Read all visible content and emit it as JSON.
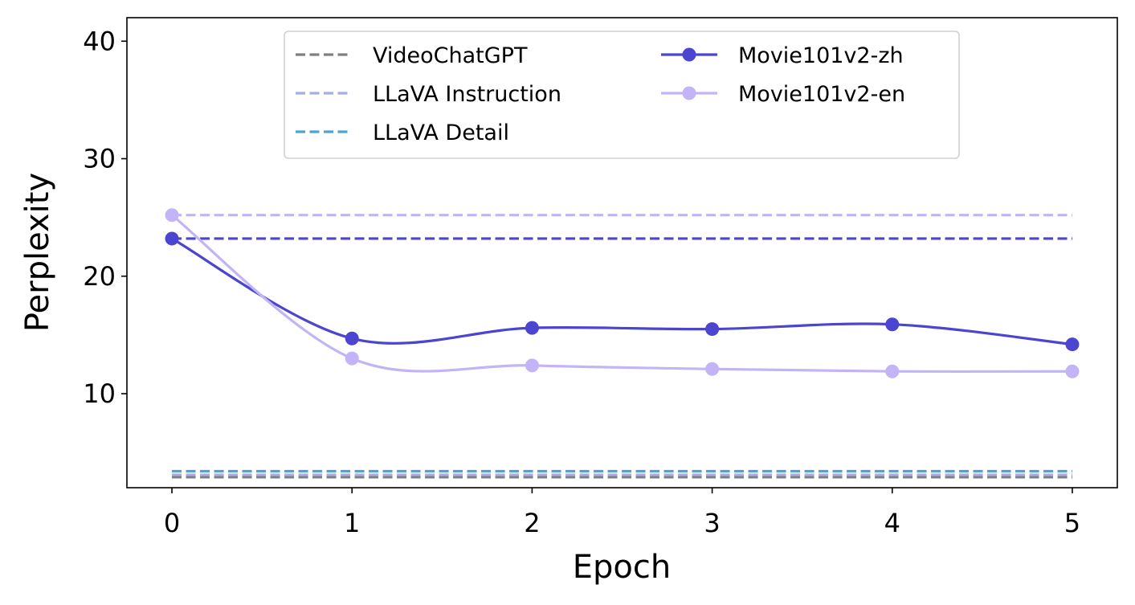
{
  "chart_data": {
    "type": "line",
    "title": "",
    "xlabel": "Epoch",
    "ylabel": "Perplexity",
    "xlim": [
      -0.25,
      5.25
    ],
    "ylim": [
      2.0,
      42.0
    ],
    "xticks": [
      0,
      1,
      2,
      3,
      4,
      5
    ],
    "yticks": [
      10,
      20,
      30,
      40
    ],
    "grid": false,
    "legend": {
      "placement": "top-center",
      "columns": 2
    },
    "series": [
      {
        "name": "VideoChatGPT",
        "style": "dashed",
        "color": "#808080",
        "x": [
          0,
          5
        ],
        "y": [
          2.9,
          2.9
        ]
      },
      {
        "name": "LLaVA Instruction",
        "style": "dashed",
        "color": "#a5aee8",
        "x": [
          0,
          5
        ],
        "y": [
          3.1,
          3.1
        ]
      },
      {
        "name": "LLaVA Detail",
        "style": "dashed",
        "color": "#4ba3d6",
        "x": [
          0,
          5
        ],
        "y": [
          3.4,
          3.4
        ]
      },
      {
        "name": "",
        "style": "dashed",
        "color": "#4b45d0",
        "x": [
          0,
          5
        ],
        "y": [
          23.2,
          23.2
        ]
      },
      {
        "name": "",
        "style": "dashed",
        "color": "#c3b4f7",
        "x": [
          0,
          5
        ],
        "y": [
          25.2,
          25.2
        ]
      },
      {
        "name": "Movie101v2-zh",
        "style": "solid-marker",
        "color": "#4b45d0",
        "x": [
          0,
          1,
          2,
          3,
          4,
          5
        ],
        "y": [
          23.2,
          14.7,
          15.6,
          15.5,
          15.9,
          14.2
        ]
      },
      {
        "name": "Movie101v2-en",
        "style": "solid-marker",
        "color": "#c3b4f7",
        "x": [
          0,
          1,
          2,
          3,
          4,
          5
        ],
        "y": [
          25.2,
          13.0,
          12.4,
          12.1,
          11.9,
          11.9
        ]
      }
    ]
  }
}
